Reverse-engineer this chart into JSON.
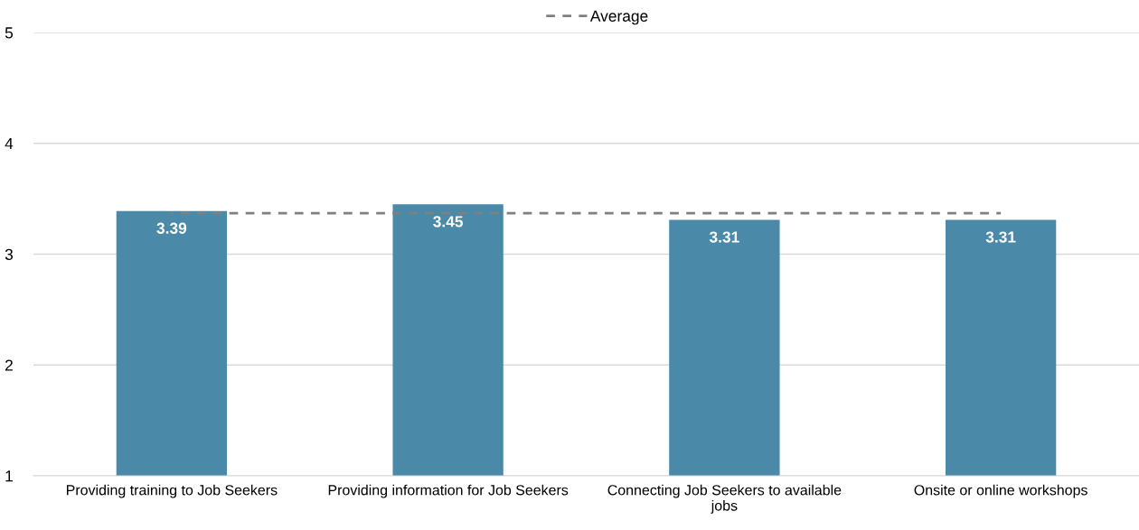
{
  "chart_data": {
    "type": "bar",
    "categories": [
      "Providing training to Job Seekers",
      "Providing information for Job Seekers",
      "Connecting Job Seekers to available jobs",
      "Onsite or online workshops"
    ],
    "series": [
      {
        "color": "#4a89a8",
        "values": [
          3.39,
          3.45,
          3.31,
          3.31
        ],
        "value_labels": [
          "3.39",
          "3.45",
          "3.31",
          "3.31"
        ]
      },
      {
        "type": "line",
        "name": "Average",
        "color": "#808080",
        "line_style": "dashed",
        "values": [
          3.37,
          3.37,
          3.37,
          3.37
        ]
      }
    ],
    "ylim": [
      1,
      5
    ],
    "yticks": [
      1,
      2,
      3,
      4,
      5
    ],
    "grid": "y",
    "legend": "top"
  }
}
